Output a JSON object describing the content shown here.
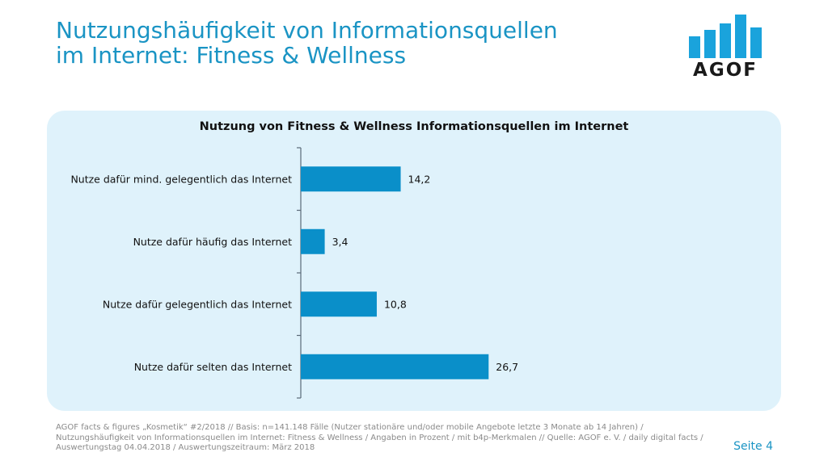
{
  "header": {
    "title_lines": [
      "Nutzungshäufigkeit von Informationsquellen",
      "im Internet: Fitness & Wellness"
    ],
    "logo_text": "AGOF",
    "logo_bar_levels": [
      0.5,
      0.65,
      0.8,
      1.0,
      0.7
    ]
  },
  "colors": {
    "title": "#1a94c4",
    "bar": "#0a8fc9",
    "panel": "#dff2fb",
    "logo_bar": "#1aa3dc",
    "axis": "#5a6a78"
  },
  "chart_data": {
    "type": "bar",
    "orientation": "horizontal",
    "title": "Nutzung von Fitness & Wellness Informationsquellen im Internet",
    "categories": [
      "Nutze dafür mind. gelegentlich das Internet",
      "Nutze dafür häufig das Internet",
      "Nutze dafür gelegentlich das Internet",
      "Nutze dafür selten das Internet"
    ],
    "values": [
      14.2,
      3.4,
      10.8,
      26.7
    ],
    "value_labels": [
      "14,2",
      "3,4",
      "10,8",
      "26,7"
    ],
    "xlim": [
      0,
      100
    ],
    "grid": false,
    "legend": "none"
  },
  "footer": {
    "note_lines": [
      "AGOF facts & figures „Kosmetik“ #2/2018 // Basis: n=141.148 Fälle (Nutzer stationäre und/oder mobile Angebote letzte 3 Monate ab 14 Jahren) /",
      "Nutzungshäufigkeit von Informationsquellen im Internet: Fitness & Wellness / Angaben in Prozent / mit b4p-Merkmalen // Quelle: AGOF e. V. / daily digital facts /",
      "Auswertungstag 04.04.2018 / Auswertungszeitraum: März 2018"
    ],
    "page_label": "Seite 4"
  }
}
